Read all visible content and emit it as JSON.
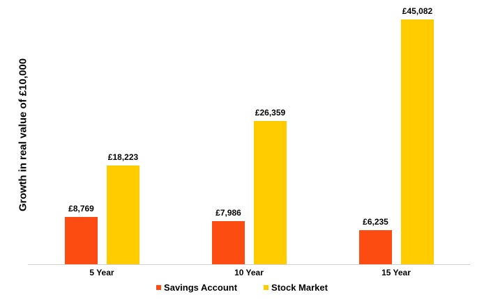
{
  "chart_data": {
    "type": "bar",
    "title": "",
    "xlabel": "",
    "ylabel": "Growth in real value of £10,000",
    "categories": [
      "5 Year",
      "10 Year",
      "15 Year"
    ],
    "series": [
      {
        "name": "Savings Account",
        "color": "#FC4C12",
        "values": [
          8769,
          7986,
          6235
        ],
        "labels": [
          "£8,769",
          "£7,986",
          "£6,235"
        ]
      },
      {
        "name": "Stock Market",
        "color": "#FFCC00",
        "values": [
          18223,
          26359,
          45082
        ],
        "labels": [
          "£18,223",
          "£26,359",
          "£45,082"
        ]
      }
    ],
    "ylim": [
      0,
      45082
    ],
    "grid": false,
    "legend_position": "bottom"
  }
}
